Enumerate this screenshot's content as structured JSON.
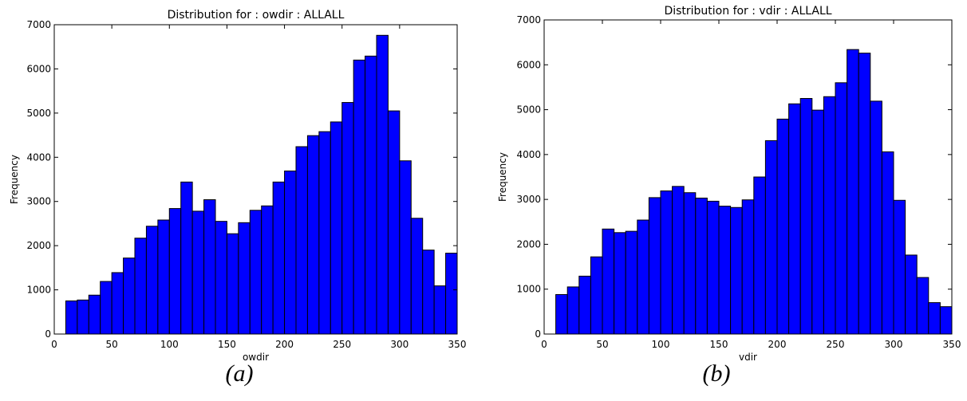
{
  "chart_data": [
    {
      "type": "bar",
      "title": "Distribution for : owdir : ALLALL",
      "xlabel": "owdir",
      "ylabel": "Frequency",
      "xlim": [
        0,
        350
      ],
      "ylim": [
        0,
        7000
      ],
      "xticks": [
        0,
        50,
        100,
        150,
        200,
        250,
        300,
        350
      ],
      "yticks": [
        0,
        1000,
        2000,
        3000,
        4000,
        5000,
        6000,
        7000
      ],
      "bin_width": 10,
      "bin_starts": [
        10,
        20,
        30,
        40,
        50,
        60,
        70,
        80,
        90,
        100,
        110,
        120,
        130,
        140,
        150,
        160,
        170,
        180,
        190,
        200,
        210,
        220,
        230,
        240,
        250,
        260,
        270,
        280,
        290,
        300,
        310,
        320,
        330,
        340
      ],
      "values": [
        750,
        770,
        880,
        1190,
        1390,
        1720,
        2170,
        2440,
        2580,
        2840,
        3440,
        2780,
        3040,
        2550,
        2270,
        2520,
        2800,
        2900,
        3440,
        3690,
        4240,
        4490,
        4580,
        4800,
        5240,
        6200,
        6290,
        6760,
        5050,
        3920,
        2620,
        1900,
        1090,
        1830
      ],
      "bar_color": "#0000ff",
      "edge_color": "#000000",
      "caption": "(a)"
    },
    {
      "type": "bar",
      "title": "Distribution for : vdir : ALLALL",
      "xlabel": "vdir",
      "ylabel": "Frequency",
      "xlim": [
        0,
        350
      ],
      "ylim": [
        0,
        7000
      ],
      "xticks": [
        0,
        50,
        100,
        150,
        200,
        250,
        300,
        350
      ],
      "yticks": [
        0,
        1000,
        2000,
        3000,
        4000,
        5000,
        6000,
        7000
      ],
      "bin_width": 10,
      "bin_starts": [
        10,
        20,
        30,
        40,
        50,
        60,
        70,
        80,
        90,
        100,
        110,
        120,
        130,
        140,
        150,
        160,
        170,
        180,
        190,
        200,
        210,
        220,
        230,
        240,
        250,
        260,
        270,
        280,
        290,
        300,
        310,
        320,
        330,
        340
      ],
      "values": [
        880,
        1050,
        1290,
        1720,
        2340,
        2260,
        2290,
        2540,
        3040,
        3190,
        3290,
        3150,
        3030,
        2960,
        2850,
        2820,
        2990,
        3500,
        4310,
        4790,
        5130,
        5250,
        4990,
        5290,
        5600,
        6340,
        6260,
        5190,
        4060,
        2980,
        1760,
        1260,
        700,
        610
      ],
      "bar_color": "#0000ff",
      "edge_color": "#000000",
      "caption": "(b)"
    }
  ]
}
